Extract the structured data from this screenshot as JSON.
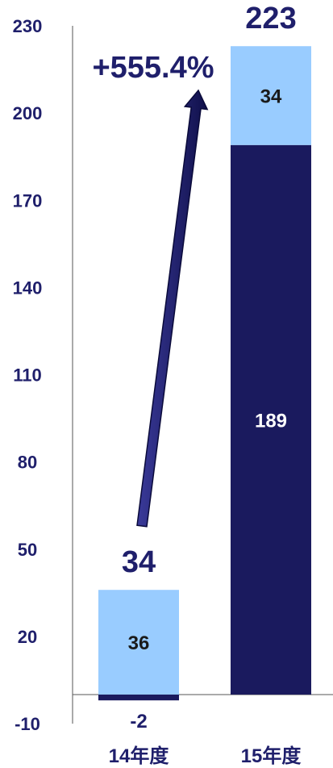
{
  "chart_data": {
    "type": "bar",
    "stacked": true,
    "categories": [
      "14年度",
      "15年度"
    ],
    "series": [
      {
        "values": [
          -2,
          189
        ],
        "color": "#1a1a5e",
        "labels": [
          "-2",
          "189"
        ],
        "label_color": "#ffffff"
      },
      {
        "values": [
          36,
          34
        ],
        "color": "#99ccff",
        "labels": [
          "36",
          "34"
        ],
        "label_color": "#1a1a1a"
      }
    ],
    "totals": [
      "34",
      "223"
    ],
    "y_ticks": [
      "230",
      "200",
      "170",
      "140",
      "110",
      "80",
      "50",
      "20",
      "-10"
    ],
    "ylim": [
      -10,
      230
    ],
    "growth_annotation": "+555.4%",
    "colors": {
      "text": "#1f1f6b",
      "arrow": "#1a1a5e",
      "axis": "#555555"
    }
  }
}
